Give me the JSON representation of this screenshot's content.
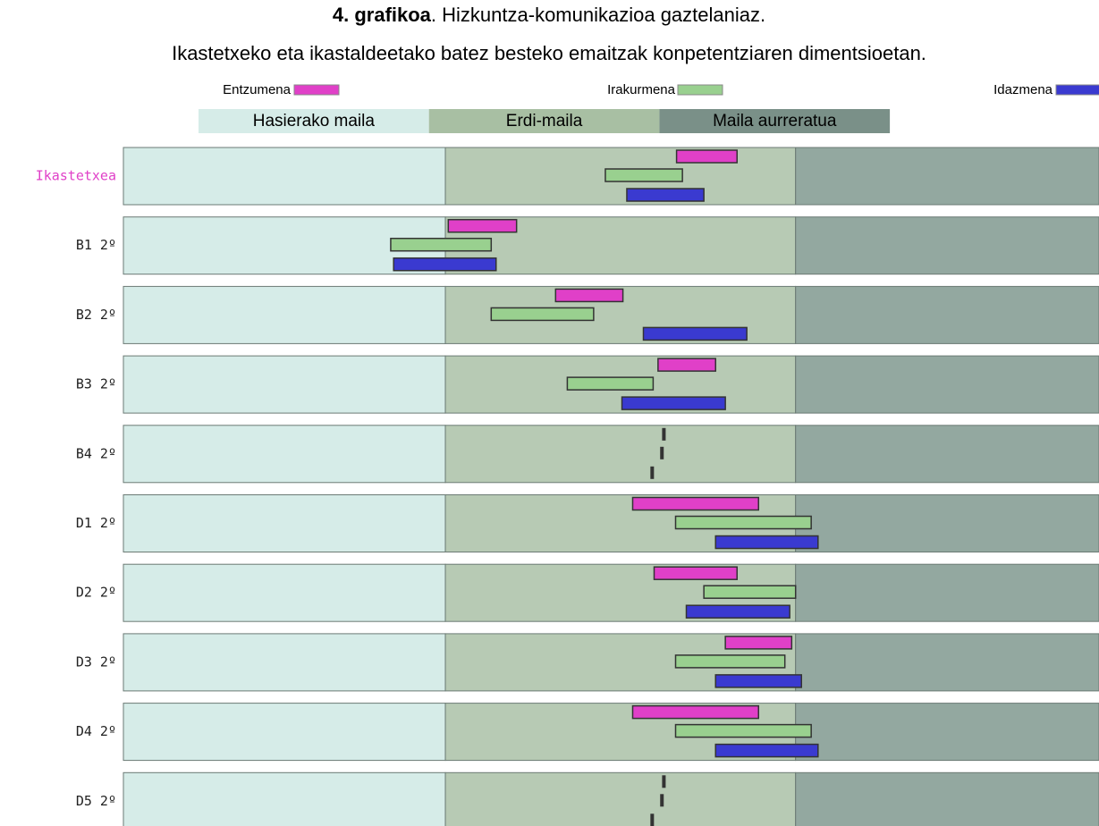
{
  "chart_data": {
    "type": "range-bar",
    "title_bold": "4. grafikoa",
    "title_rest": ". Hizkuntza-komunikazioa gaztelaniaz.",
    "subtitle": "Ikastetxeko eta ikastaldeetako batez besteko emaitzak konpetentziaren dimentsioetan.",
    "xlim": [
      0,
      100
    ],
    "zones": [
      {
        "name": "Hasierako maila",
        "color": "#d6ece8",
        "header_color": "#d6ece8",
        "range": [
          0,
          33
        ]
      },
      {
        "name": "Erdi-maila",
        "color": "#b7cab4",
        "header_color": "#a8bfa3",
        "range": [
          33,
          68.9
        ]
      },
      {
        "name": "Maila aurreratua",
        "color": "#93a8a0",
        "header_color": "#7a9088",
        "range": [
          68.9,
          100
        ]
      }
    ],
    "categories": [
      "Ikastetxea",
      "B1 2º",
      "B2 2º",
      "B3 2º",
      "B4 2º",
      "D1 2º",
      "D2 2º",
      "D3 2º",
      "D4 2º",
      "D5 2º"
    ],
    "category_colors": [
      "#e040c8",
      "#222222",
      "#222222",
      "#222222",
      "#222222",
      "#222222",
      "#222222",
      "#222222",
      "#222222",
      "#222222"
    ],
    "series": [
      {
        "name": "Entzumena",
        "color": "#e040c8",
        "values": [
          [
            56.7,
            62.9
          ],
          [
            33.3,
            40.3
          ],
          [
            44.3,
            51.2
          ],
          [
            54.8,
            60.7
          ],
          [
            55.4,
            55.4
          ],
          [
            52.2,
            65.1
          ],
          [
            54.4,
            62.9
          ],
          [
            61.7,
            68.5
          ],
          [
            52.2,
            65.1
          ],
          [
            55.4,
            55.4
          ]
        ]
      },
      {
        "name": "Irakurmena",
        "color": "#99d08f",
        "values": [
          [
            49.4,
            57.3
          ],
          [
            27.4,
            37.7
          ],
          [
            37.7,
            48.2
          ],
          [
            45.5,
            54.3
          ],
          [
            55.2,
            55.2
          ],
          [
            56.6,
            70.5
          ],
          [
            59.5,
            68.9
          ],
          [
            56.6,
            67.8
          ],
          [
            56.6,
            70.5
          ],
          [
            55.2,
            55.2
          ]
        ]
      },
      {
        "name": "Idazmena",
        "color": "#3a3ad0",
        "values": [
          [
            51.6,
            59.5
          ],
          [
            27.7,
            38.2
          ],
          [
            53.3,
            63.9
          ],
          [
            51.1,
            61.7
          ],
          [
            54.2,
            54.2
          ],
          [
            60.7,
            71.2
          ],
          [
            57.7,
            68.3
          ],
          [
            60.7,
            69.5
          ],
          [
            60.7,
            71.2
          ],
          [
            54.2,
            54.2
          ]
        ]
      }
    ]
  }
}
